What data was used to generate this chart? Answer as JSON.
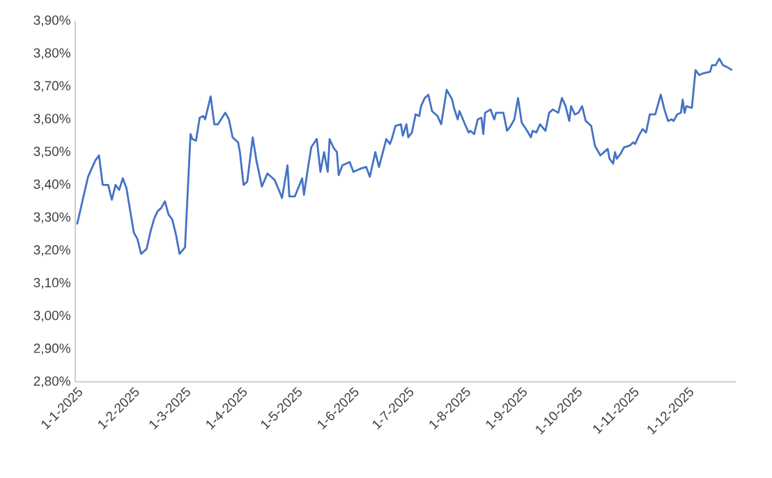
{
  "chart_data": {
    "type": "line",
    "color": "#4472c4",
    "xlim": [
      "2024-12-31",
      "2025-12-27"
    ],
    "ylim": [
      2.8,
      3.9
    ],
    "xticks": [
      {
        "value": "2025-01-01",
        "label": "1-1-2025"
      },
      {
        "value": "2025-02-01",
        "label": "1-2-2025"
      },
      {
        "value": "2025-03-01",
        "label": "1-3-2025"
      },
      {
        "value": "2025-04-01",
        "label": "1-4-2025"
      },
      {
        "value": "2025-05-01",
        "label": "1-5-2025"
      },
      {
        "value": "2025-06-01",
        "label": "1-6-2025"
      },
      {
        "value": "2025-07-01",
        "label": "1-7-2025"
      },
      {
        "value": "2025-08-01",
        "label": "1-8-2025"
      },
      {
        "value": "2025-09-01",
        "label": "1-9-2025"
      },
      {
        "value": "2025-10-01",
        "label": "1-10-2025"
      },
      {
        "value": "2025-11-01",
        "label": "1-11-2025"
      },
      {
        "value": "2025-12-01",
        "label": "1-12-2025"
      }
    ],
    "yticks": [
      {
        "value": 2.8,
        "label": "2,80%"
      },
      {
        "value": 2.9,
        "label": "2,90%"
      },
      {
        "value": 3.0,
        "label": "3,00%"
      },
      {
        "value": 3.1,
        "label": "3,10%"
      },
      {
        "value": 3.2,
        "label": "3,20%"
      },
      {
        "value": 3.3,
        "label": "3,30%"
      },
      {
        "value": 3.4,
        "label": "3,40%"
      },
      {
        "value": 3.5,
        "label": "3,50%"
      },
      {
        "value": 3.6,
        "label": "3,60%"
      },
      {
        "value": 3.7,
        "label": "3,70%"
      },
      {
        "value": 3.8,
        "label": "3,80%"
      },
      {
        "value": 3.9,
        "label": "3,90%"
      }
    ],
    "x": [
      "2025-01-01",
      "2025-01-07",
      "2025-01-11",
      "2025-01-13",
      "2025-01-15",
      "2025-01-18",
      "2025-01-20",
      "2025-01-22",
      "2025-01-24",
      "2025-01-26",
      "2025-01-28",
      "2025-02-01",
      "2025-02-03",
      "2025-02-05",
      "2025-02-08",
      "2025-02-10",
      "2025-02-12",
      "2025-02-14",
      "2025-02-16",
      "2025-02-18",
      "2025-02-20",
      "2025-02-22",
      "2025-02-24",
      "2025-02-26",
      "2025-03-01",
      "2025-03-04",
      "2025-03-05",
      "2025-03-07",
      "2025-03-09",
      "2025-03-11",
      "2025-03-12",
      "2025-03-15",
      "2025-03-17",
      "2025-03-19",
      "2025-03-23",
      "2025-03-25",
      "2025-03-27",
      "2025-03-30",
      "2025-03-31",
      "2025-04-02",
      "2025-04-04",
      "2025-04-07",
      "2025-04-09",
      "2025-04-12",
      "2025-04-15",
      "2025-04-18",
      "2025-04-19",
      "2025-04-22",
      "2025-04-23",
      "2025-04-26",
      "2025-04-27",
      "2025-04-30",
      "2025-05-04",
      "2025-05-05",
      "2025-05-07",
      "2025-05-09",
      "2025-05-12",
      "2025-05-14",
      "2025-05-16",
      "2025-05-18",
      "2025-05-19",
      "2025-05-21",
      "2025-05-23",
      "2025-05-24",
      "2025-05-26",
      "2025-05-30",
      "2025-06-01",
      "2025-06-05",
      "2025-06-08",
      "2025-06-10",
      "2025-06-13",
      "2025-06-15",
      "2025-06-19",
      "2025-06-21",
      "2025-06-22",
      "2025-06-24",
      "2025-06-27",
      "2025-06-28",
      "2025-06-30",
      "2025-07-01",
      "2025-07-03",
      "2025-07-05",
      "2025-07-07",
      "2025-07-08",
      "2025-07-10",
      "2025-07-12",
      "2025-07-14",
      "2025-07-17",
      "2025-07-19",
      "2025-07-22",
      "2025-07-25",
      "2025-07-26",
      "2025-07-28",
      "2025-07-29",
      "2025-08-01",
      "2025-08-03",
      "2025-08-04",
      "2025-08-06",
      "2025-08-08",
      "2025-08-10",
      "2025-08-11",
      "2025-08-12",
      "2025-08-15",
      "2025-08-17",
      "2025-08-18",
      "2025-08-22",
      "2025-08-24",
      "2025-08-26",
      "2025-08-28",
      "2025-08-30",
      "2025-09-01",
      "2025-09-04",
      "2025-09-06",
      "2025-09-07",
      "2025-09-09",
      "2025-09-11",
      "2025-09-14",
      "2025-09-16",
      "2025-09-18",
      "2025-09-21",
      "2025-09-23",
      "2025-09-25",
      "2025-09-27",
      "2025-09-28",
      "2025-09-30",
      "2025-10-02",
      "2025-10-04",
      "2025-10-06",
      "2025-10-07",
      "2025-10-09",
      "2025-10-11",
      "2025-10-14",
      "2025-10-16",
      "2025-10-18",
      "2025-10-19",
      "2025-10-21",
      "2025-10-22",
      "2025-10-23",
      "2025-10-25",
      "2025-10-27",
      "2025-10-30",
      "2025-11-01",
      "2025-11-02",
      "2025-11-04",
      "2025-11-06",
      "2025-11-08",
      "2025-11-10",
      "2025-11-13",
      "2025-11-16",
      "2025-11-18",
      "2025-11-20",
      "2025-11-22",
      "2025-11-23",
      "2025-11-25",
      "2025-11-27",
      "2025-11-28",
      "2025-11-29",
      "2025-11-30",
      "2025-12-03",
      "2025-12-05",
      "2025-12-07",
      "2025-12-09",
      "2025-12-13",
      "2025-12-14",
      "2025-12-16",
      "2025-12-18",
      "2025-12-20",
      "2025-12-22",
      "2025-12-25"
    ],
    "values": [
      3.28,
      3.425,
      3.475,
      3.49,
      3.4,
      3.4,
      3.355,
      3.4,
      3.385,
      3.42,
      3.39,
      3.255,
      3.235,
      3.19,
      3.205,
      3.255,
      3.295,
      3.32,
      3.33,
      3.35,
      3.31,
      3.295,
      3.25,
      3.19,
      3.21,
      3.555,
      3.54,
      3.535,
      3.605,
      3.61,
      3.6,
      3.67,
      3.585,
      3.585,
      3.62,
      3.6,
      3.545,
      3.53,
      3.5,
      3.4,
      3.41,
      3.545,
      3.475,
      3.395,
      3.435,
      3.42,
      3.415,
      3.375,
      3.36,
      3.46,
      3.365,
      3.365,
      3.42,
      3.37,
      3.445,
      3.515,
      3.54,
      3.44,
      3.5,
      3.44,
      3.54,
      3.515,
      3.5,
      3.43,
      3.46,
      3.47,
      3.44,
      3.45,
      3.455,
      3.425,
      3.5,
      3.455,
      3.54,
      3.525,
      3.54,
      3.58,
      3.585,
      3.55,
      3.585,
      3.545,
      3.56,
      3.615,
      3.61,
      3.64,
      3.665,
      3.675,
      3.625,
      3.61,
      3.585,
      3.69,
      3.66,
      3.635,
      3.6,
      3.625,
      3.585,
      3.56,
      3.565,
      3.555,
      3.6,
      3.605,
      3.555,
      3.62,
      3.63,
      3.6,
      3.62,
      3.62,
      3.565,
      3.58,
      3.6,
      3.665,
      3.59,
      3.565,
      3.545,
      3.565,
      3.56,
      3.585,
      3.565,
      3.62,
      3.63,
      3.62,
      3.665,
      3.64,
      3.595,
      3.64,
      3.615,
      3.62,
      3.64,
      3.595,
      3.59,
      3.58,
      3.52,
      3.49,
      3.5,
      3.51,
      3.48,
      3.465,
      3.5,
      3.48,
      3.495,
      3.515,
      3.52,
      3.53,
      3.525,
      3.55,
      3.57,
      3.56,
      3.615,
      3.615,
      3.675,
      3.63,
      3.595,
      3.6,
      3.595,
      3.615,
      3.62,
      3.66,
      3.62,
      3.64,
      3.635,
      3.75,
      3.735,
      3.74,
      3.745,
      3.765,
      3.765,
      3.785,
      3.765,
      3.76,
      3.75
    ]
  }
}
